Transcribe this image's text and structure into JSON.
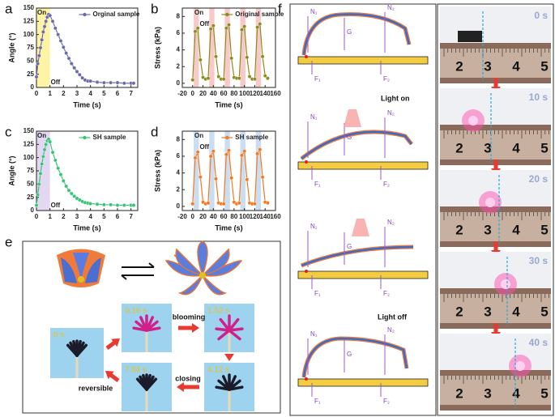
{
  "chart_data": [
    {
      "type": "line",
      "panel_label": "a",
      "x_label": "Time (s)",
      "y_label": "Angle (°)",
      "xlim": [
        0,
        7.5
      ],
      "xticks": [
        0,
        1,
        2,
        3,
        4,
        5,
        6,
        7
      ],
      "ylim": [
        0,
        150
      ],
      "yticks": [
        0,
        25,
        50,
        75,
        100,
        125,
        150
      ],
      "x": [
        0,
        0.1,
        0.2,
        0.3,
        0.4,
        0.5,
        0.6,
        0.7,
        0.8,
        0.9,
        1.0,
        1.2,
        1.4,
        1.6,
        1.8,
        2.0,
        2.2,
        2.4,
        2.6,
        2.8,
        3.0,
        3.2,
        3.4,
        3.6,
        3.8,
        4.0,
        4.5,
        5,
        5.5,
        6,
        6.5,
        7,
        7.2
      ],
      "series": [
        {
          "name": "Orginal sample",
          "color": "#6b6ba8",
          "values": [
            20,
            45,
            60,
            75,
            90,
            105,
            115,
            125,
            133,
            138,
            136,
            125,
            112,
            100,
            88,
            76,
            65,
            55,
            45,
            37,
            30,
            24,
            18,
            14,
            12,
            12,
            10,
            9,
            9,
            9,
            8,
            8,
            8
          ]
        }
      ],
      "annotations": [
        "On",
        "Off"
      ],
      "shaded": {
        "color": "#fff3a6",
        "ranges": [
          [
            0,
            1
          ]
        ]
      }
    },
    {
      "type": "line",
      "panel_label": "b",
      "x_label": "Time (s)",
      "y_label": "Stress (kPa)",
      "xlim": [
        -20,
        160
      ],
      "xticks": [
        -20,
        0,
        20,
        40,
        60,
        80,
        100,
        120,
        140,
        160
      ],
      "ylim": [
        -0.5,
        9
      ],
      "yticks": [
        0,
        2,
        4,
        6,
        8
      ],
      "x": [
        0,
        5,
        10,
        15,
        20,
        25,
        30,
        35,
        40,
        45,
        50,
        55,
        60,
        65,
        70,
        75,
        80,
        85,
        90,
        95,
        100,
        105,
        110,
        115,
        120,
        125,
        130,
        135,
        140,
        145
      ],
      "series": [
        {
          "name": "Original sample",
          "color": "#8c8c1e",
          "values": [
            0.4,
            6.2,
            6.6,
            2.8,
            0.7,
            0.5,
            0.6,
            6.5,
            6.9,
            3.2,
            0.8,
            0.5,
            0.5,
            6.6,
            7.0,
            3.0,
            0.7,
            0.6,
            0.6,
            6.4,
            6.8,
            3.1,
            0.8,
            0.5,
            0.5,
            6.7,
            7.1,
            3.2,
            0.9,
            0.6
          ]
        }
      ],
      "annotations": [
        "On",
        "Off"
      ],
      "shaded": {
        "color": "#f8c9c9",
        "ranges": [
          [
            2,
            12
          ],
          [
            32,
            42
          ],
          [
            62,
            72
          ],
          [
            92,
            102
          ],
          [
            122,
            132
          ]
        ]
      }
    },
    {
      "type": "line",
      "panel_label": "c",
      "x_label": "Time (s)",
      "y_label": "Angle (°)",
      "xlim": [
        0,
        7.5
      ],
      "xticks": [
        0,
        1,
        2,
        3,
        4,
        5,
        6,
        7
      ],
      "ylim": [
        0,
        150
      ],
      "yticks": [
        0,
        25,
        50,
        75,
        100,
        125,
        150
      ],
      "x": [
        0,
        0.1,
        0.2,
        0.3,
        0.4,
        0.5,
        0.6,
        0.7,
        0.8,
        0.9,
        1.0,
        1.2,
        1.4,
        1.6,
        1.8,
        2.0,
        2.2,
        2.4,
        2.6,
        2.8,
        3.0,
        3.2,
        3.4,
        3.6,
        3.8,
        4.0,
        4.5,
        5,
        5.5,
        6,
        6.5,
        7,
        7.2
      ],
      "series": [
        {
          "name": "SH sample",
          "color": "#38c476",
          "values": [
            10,
            30,
            50,
            70,
            88,
            102,
            115,
            125,
            132,
            135,
            130,
            110,
            95,
            80,
            68,
            56,
            46,
            38,
            32,
            27,
            23,
            20,
            17,
            15,
            14,
            13,
            12,
            11,
            11,
            10,
            10,
            10,
            10
          ]
        }
      ],
      "annotations": [
        "On",
        "Off"
      ],
      "shaded": {
        "color": "#e4d7f2",
        "ranges": [
          [
            0,
            1
          ]
        ]
      }
    },
    {
      "type": "line",
      "panel_label": "d",
      "x_label": "Time (s)",
      "y_label": "Stress (kPa)",
      "xlim": [
        -20,
        160
      ],
      "xticks": [
        -20,
        0,
        20,
        40,
        60,
        80,
        100,
        120,
        140,
        160
      ],
      "ylim": [
        -0.5,
        9
      ],
      "yticks": [
        0,
        2,
        4,
        6,
        8
      ],
      "x": [
        0,
        5,
        10,
        15,
        20,
        25,
        30,
        35,
        40,
        45,
        50,
        55,
        60,
        65,
        70,
        75,
        80,
        85,
        90,
        95,
        100,
        105,
        110,
        115,
        120,
        125,
        130,
        135,
        140,
        145
      ],
      "series": [
        {
          "name": "SH sample",
          "color": "#f7781c",
          "values": [
            0.3,
            5.8,
            6.5,
            3.5,
            0.5,
            0.3,
            0.4,
            6.0,
            6.6,
            3.3,
            0.4,
            0.3,
            0.3,
            6.2,
            6.7,
            3.4,
            0.5,
            0.3,
            0.4,
            6.1,
            6.6,
            3.2,
            0.4,
            0.3,
            0.3,
            6.3,
            6.8,
            3.5,
            0.5,
            0.4
          ]
        }
      ],
      "annotations": [
        "On",
        "Off"
      ],
      "shaded": {
        "color": "#c9ddf3",
        "ranges": [
          [
            2,
            12
          ],
          [
            32,
            42
          ],
          [
            62,
            72
          ],
          [
            92,
            102
          ],
          [
            122,
            132
          ]
        ]
      }
    }
  ],
  "panel_e": {
    "label": "e",
    "times": [
      "0 s",
      "0.16 s",
      "1.52 s",
      "4.12 s",
      "7.84 s"
    ],
    "steps": [
      "blooming",
      "closing",
      "reversible"
    ]
  },
  "panel_f": {
    "label": "f",
    "states": [
      "Light on",
      "Light off"
    ],
    "forces": [
      "N₁",
      "N₂",
      "G",
      "F₁",
      "F₂"
    ],
    "times": [
      "0 s",
      "10 s",
      "20 s",
      "30 s",
      "40 s"
    ],
    "ruler_labels": [
      "2",
      "3",
      "4",
      "5"
    ]
  }
}
